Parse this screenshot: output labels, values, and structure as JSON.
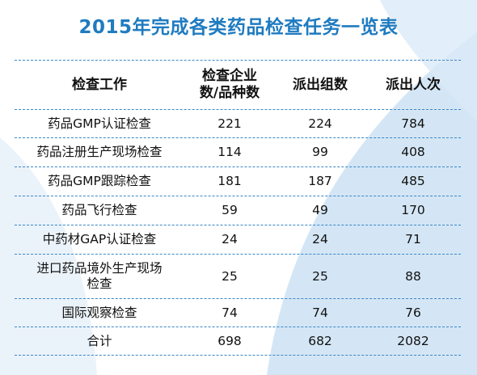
{
  "title": "2015年完成各类药品检查任务一览表",
  "header": {
    "col0": "检查工作",
    "col1_line1": "检查企业",
    "col1_line2": "数/品种数",
    "col2": "派出组数",
    "col3": "派出人次"
  },
  "rows": [
    {
      "name": "药品GMP认证检查",
      "companies": "221",
      "groups": "224",
      "persons": "784"
    },
    {
      "name": "药品注册生产现场检查",
      "companies": "114",
      "groups": "99",
      "persons": "408"
    },
    {
      "name": "药品GMP跟踪检查",
      "companies": "181",
      "groups": "187",
      "persons": "485"
    },
    {
      "name": "药品飞行检查",
      "companies": "59",
      "groups": "49",
      "persons": "170"
    },
    {
      "name": "中药材GAP认证检查",
      "companies": "24",
      "groups": "24",
      "persons": "71"
    },
    {
      "name_line1": "进口药品境外生产现场",
      "name_line2": "检查",
      "companies": "25",
      "groups": "25",
      "persons": "88"
    },
    {
      "name": "国际观察检查",
      "companies": "74",
      "groups": "74",
      "persons": "76"
    },
    {
      "name": "合计",
      "companies": "698",
      "groups": "682",
      "persons": "2082"
    }
  ],
  "colors": {
    "title": "#1f7bc0",
    "rule": "#3a86c8",
    "background_arc": "#cfe3f4"
  }
}
